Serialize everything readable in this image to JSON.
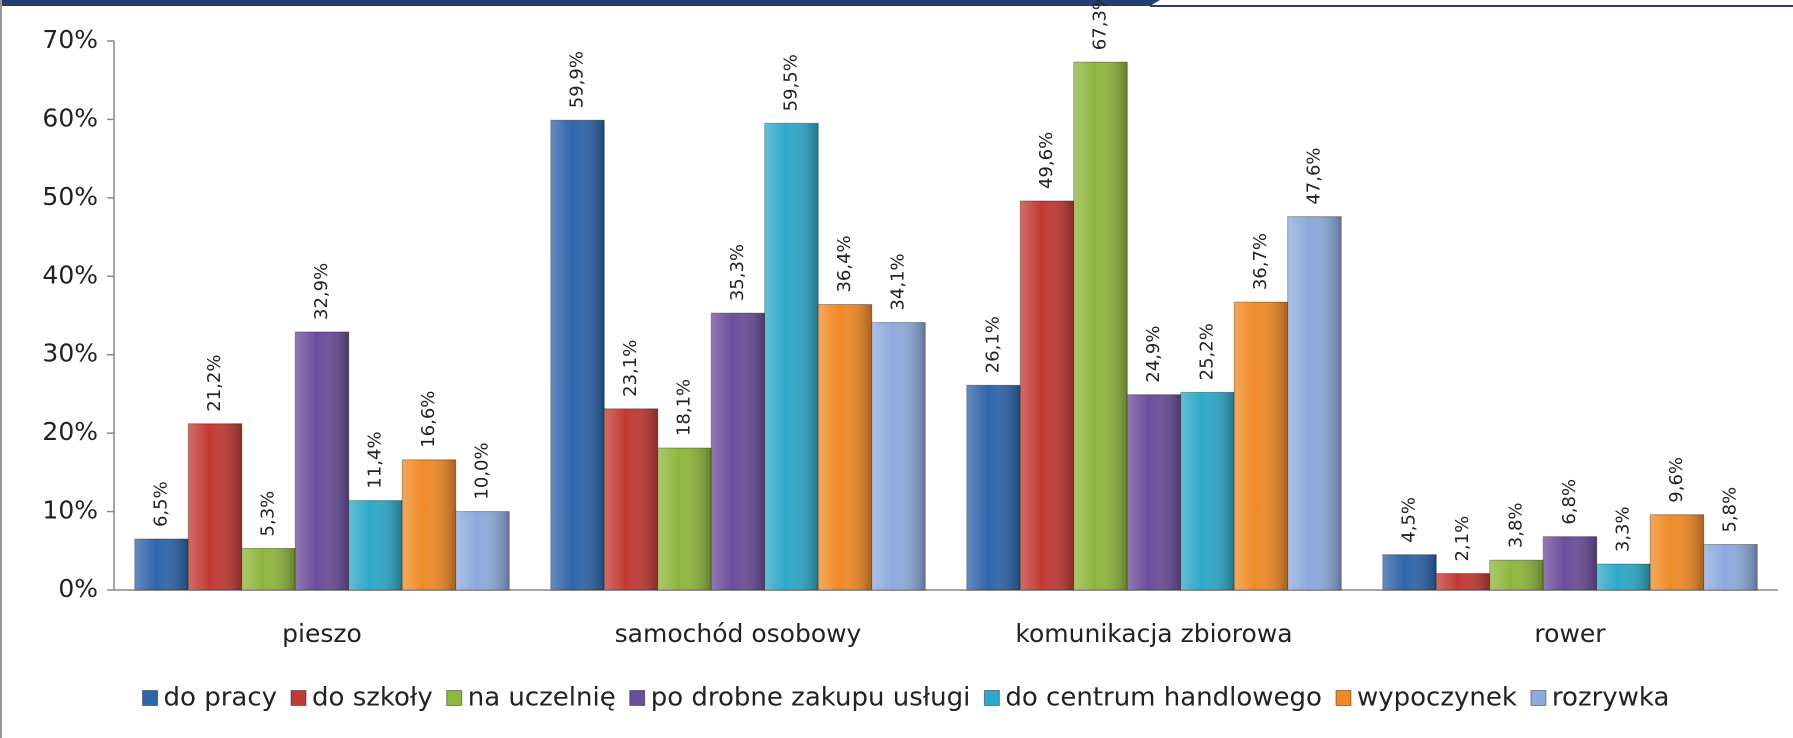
{
  "chart_data": {
    "type": "bar",
    "categories": [
      "pieszo",
      "samochód osobowy",
      "komunikacja zbiorowa",
      "rower"
    ],
    "series": [
      {
        "name": "do pracy",
        "color": "#2f65aa",
        "values": [
          6.5,
          59.9,
          26.1,
          4.5
        ],
        "value_labels": [
          "6,5%",
          "59,9%",
          "26,1%",
          "4,5%"
        ]
      },
      {
        "name": "do szkoły",
        "color": "#c23a34",
        "values": [
          21.2,
          23.1,
          49.6,
          2.1
        ],
        "value_labels": [
          "21,2%",
          "23,1%",
          "49,6%",
          "2,1%"
        ]
      },
      {
        "name": "na uczelnię",
        "color": "#8fb63e",
        "values": [
          5.3,
          18.1,
          67.3,
          3.8
        ],
        "value_labels": [
          "5,3%",
          "18,1%",
          "67,3%",
          "3,8%"
        ]
      },
      {
        "name": "po drobne zakupu usługi",
        "color": "#6c4d9b",
        "values": [
          32.9,
          35.3,
          24.9,
          6.8
        ],
        "value_labels": [
          "32,9%",
          "35,3%",
          "24,9%",
          "6,8%"
        ]
      },
      {
        "name": "do centrum handlowego",
        "color": "#2ea9c9",
        "values": [
          11.4,
          59.5,
          25.2,
          3.3
        ],
        "value_labels": [
          "11,4%",
          "59,5%",
          "25,2%",
          "3,3%"
        ]
      },
      {
        "name": "wypoczynek",
        "color": "#f08a26",
        "values": [
          16.6,
          36.4,
          36.7,
          9.6
        ],
        "value_labels": [
          "16,6%",
          "36,4%",
          "36,7%",
          "9,6%"
        ]
      },
      {
        "name": "rozrywka",
        "color": "#8eaadc",
        "values": [
          10.0,
          34.1,
          47.6,
          5.8
        ],
        "value_labels": [
          "10,0%",
          "34,1%",
          "47,6%",
          "5,8%"
        ]
      }
    ],
    "ylim": [
      0,
      70
    ],
    "yticks": [
      {
        "value": 0,
        "label": "0%"
      },
      {
        "value": 10,
        "label": "10%"
      },
      {
        "value": 20,
        "label": "20%"
      },
      {
        "value": 30,
        "label": "30%"
      },
      {
        "value": 40,
        "label": "40%"
      },
      {
        "value": 50,
        "label": "50%"
      },
      {
        "value": 60,
        "label": "60%"
      },
      {
        "value": 70,
        "label": "70%"
      }
    ],
    "legend": "bottom"
  }
}
